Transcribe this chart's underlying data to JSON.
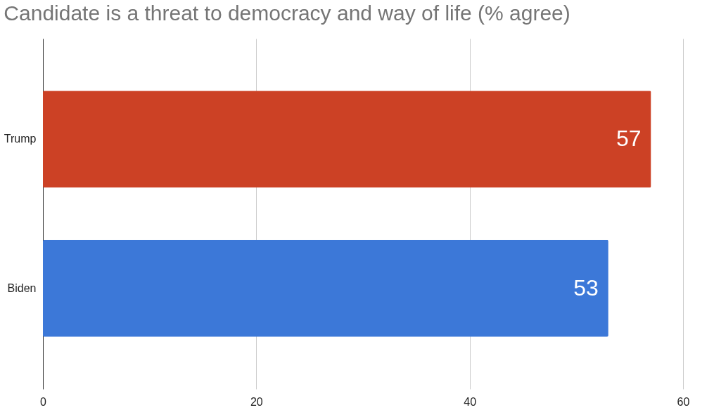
{
  "chart_data": {
    "type": "bar",
    "orientation": "horizontal",
    "title": "Candidate is a threat to democracy and way of life (% agree)",
    "categories": [
      "Trump",
      "Biden"
    ],
    "values": [
      57,
      53
    ],
    "colors": [
      "#cc4125",
      "#3c78d8"
    ],
    "xlim": [
      0,
      60
    ],
    "xticks": [
      0,
      20,
      40,
      60
    ],
    "grid": "x",
    "data_labels": true
  }
}
